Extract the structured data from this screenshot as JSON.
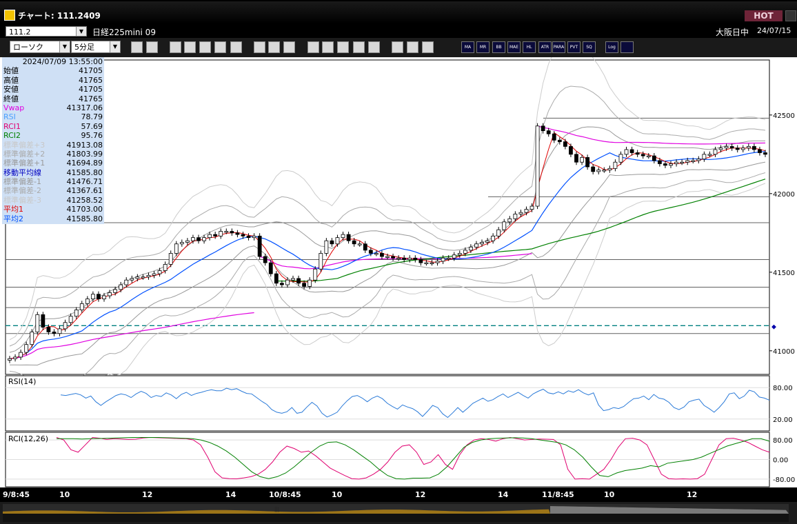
{
  "window": {
    "title": "チャート: 111.2409",
    "hot_label": "HOT"
  },
  "symbol_bar": {
    "code": "111.2",
    "name": "日経225mini 09",
    "market": "大阪日中",
    "date": "24/07/15"
  },
  "toolbar": {
    "chart_type": "ローソク",
    "timeframe": "5分足",
    "buttons_a": [
      "zoom-icon",
      "cursor-icon",
      "arrow-down-icon",
      "search-detail-icon",
      "bars-icon",
      "pin-icon",
      "lock-icon",
      "candle-icon",
      "candle-s-icon",
      "all-icon",
      "pen-icon",
      "trend-icon",
      "hand-icon",
      "copy-icon",
      "trash-icon",
      "target-icon",
      "brush-icon",
      "palette-icon"
    ],
    "buttons_b": [
      "MA",
      "MR",
      "BB",
      "MAE",
      "HL",
      "ATR",
      "PARA",
      "PVT",
      "SQ"
    ],
    "buttons_c": [
      "Log",
      "mark-icon"
    ]
  },
  "info_panel": {
    "datetime": "2024/07/09  13:55:00",
    "rows": [
      {
        "label": "始値",
        "value": "41705",
        "color": "#000000"
      },
      {
        "label": "高値",
        "value": "41765",
        "color": "#000000"
      },
      {
        "label": "安値",
        "value": "41705",
        "color": "#000000"
      },
      {
        "label": "終値",
        "value": "41765",
        "color": "#000000"
      },
      {
        "label": "Vwap",
        "value": "41317.06",
        "color": "#e000e0"
      },
      {
        "label": "RSI",
        "value": "78.79",
        "color": "#4aa0ff"
      },
      {
        "label": "RCI1",
        "value": "57.69",
        "color": "#e00070"
      },
      {
        "label": "RCI2",
        "value": "95.76",
        "color": "#008000"
      },
      {
        "label": "標準偏差+3",
        "value": "41913.08",
        "color": "#c8c8c8"
      },
      {
        "label": "標準偏差+2",
        "value": "41803.99",
        "color": "#aaaaaa"
      },
      {
        "label": "標準偏差+1",
        "value": "41694.89",
        "color": "#999999"
      },
      {
        "label": "移動平均線",
        "value": "41585.80",
        "color": "#0000c0"
      },
      {
        "label": "標準偏差-1",
        "value": "41476.71",
        "color": "#999999"
      },
      {
        "label": "標準偏差-2",
        "value": "41367.61",
        "color": "#aaaaaa"
      },
      {
        "label": "標準偏差-3",
        "value": "41258.52",
        "color": "#c8c8c8"
      },
      {
        "label": "平均1",
        "value": "41703.00",
        "color": "#e00000"
      },
      {
        "label": "平均2",
        "value": "41585.80",
        "color": "#0050ff"
      }
    ]
  },
  "chart_data": [
    {
      "type": "candlestick",
      "y_ticks": [
        41000,
        41500,
        42000,
        42500
      ],
      "ylim": [
        40850,
        42850
      ],
      "x_ticks": [
        "9/8:45",
        "10",
        "12",
        "14",
        "10/8:45",
        "10",
        "12",
        "14",
        "11/8:45",
        "10",
        "12"
      ],
      "reference_price": 41160,
      "horizontal_levels": [
        42480,
        41980,
        41815,
        41580,
        41405,
        41275,
        41110
      ],
      "close_series": [
        40950,
        40960,
        40990,
        41040,
        41120,
        41230,
        41150,
        41120,
        41110,
        41140,
        41180,
        41220,
        41260,
        41300,
        41330,
        41360,
        41330,
        41350,
        41370,
        41390,
        41420,
        41450,
        41460,
        41470,
        41470,
        41480,
        41490,
        41510,
        41550,
        41620,
        41680,
        41690,
        41700,
        41720,
        41700,
        41720,
        41740,
        41730,
        41760,
        41760,
        41750,
        41740,
        41730,
        41720,
        41730,
        41600,
        41560,
        41490,
        41430,
        41420,
        41450,
        41460,
        41430,
        41410,
        41450,
        41520,
        41620,
        41700,
        41680,
        41720,
        41740,
        41700,
        41680,
        41680,
        41640,
        41620,
        41620,
        41600,
        41600,
        41590,
        41590,
        41580,
        41590,
        41580,
        41560,
        41560,
        41560,
        41570,
        41590,
        41590,
        41610,
        41620,
        41640,
        41660,
        41680,
        41690,
        41700,
        41730,
        41770,
        41820,
        41840,
        41870,
        41880,
        41900,
        41920,
        42430,
        42400,
        42380,
        42340,
        42330,
        42300,
        42250,
        42200,
        42230,
        42170,
        42140,
        42150,
        42150,
        42160,
        42200,
        42250,
        42280,
        42260,
        42250,
        42240,
        42240,
        42210,
        42190,
        42180,
        42190,
        42200,
        42200,
        42210,
        42210,
        42220,
        42250,
        42250,
        42280,
        42290,
        42300,
        42290,
        42280,
        42290,
        42300,
        42280,
        42260,
        42250
      ]
    },
    {
      "type": "line",
      "title": "RSI(14)",
      "y_ticks": [
        80,
        20
      ],
      "ylim": [
        0,
        100
      ],
      "series": [
        {
          "name": "RSI",
          "values": [
            66,
            65,
            67,
            69,
            66,
            60,
            64,
            53,
            46,
            53,
            59,
            65,
            68,
            66,
            61,
            68,
            73,
            69,
            61,
            65,
            63,
            70,
            66,
            59,
            67,
            71,
            65,
            69,
            71,
            74,
            76,
            74,
            74,
            79,
            76,
            78,
            73,
            69,
            68,
            61,
            54,
            48,
            38,
            33,
            31,
            34,
            42,
            31,
            33,
            43,
            52,
            45,
            31,
            24,
            28,
            33,
            45,
            55,
            63,
            65,
            60,
            53,
            60,
            64,
            59,
            50,
            44,
            39,
            47,
            43,
            40,
            34,
            25,
            35,
            46,
            42,
            30,
            23,
            32,
            42,
            33,
            41,
            50,
            55,
            60,
            54,
            57,
            63,
            68,
            61,
            66,
            71,
            65,
            60,
            68,
            73,
            77,
            70,
            68,
            72,
            68,
            74,
            71,
            76,
            70,
            66,
            70,
            47,
            36,
            38,
            42,
            40,
            44,
            52,
            59,
            60,
            64,
            57,
            67,
            60,
            58,
            52,
            42,
            38,
            43,
            53,
            56,
            58,
            46,
            40,
            33,
            42,
            53,
            68,
            70,
            59,
            64,
            75,
            72,
            62,
            60,
            56
          ]
        }
      ]
    },
    {
      "type": "line",
      "title": "RCI(12,26)",
      "y_ticks": [
        80,
        0,
        -80
      ],
      "ylim": [
        -100,
        100
      ],
      "series": [
        {
          "name": "RCI1",
          "values": [
            90,
            80,
            40,
            30,
            60,
            90,
            87,
            82,
            85,
            84,
            82,
            83,
            88,
            90,
            89,
            88,
            87,
            86,
            85,
            80,
            60,
            10,
            -50,
            -75,
            -78,
            -79,
            -75,
            -70,
            -60,
            -40,
            -10,
            30,
            55,
            45,
            30,
            35,
            15,
            -10,
            -35,
            -50,
            -65,
            -78,
            -80,
            -75,
            -60,
            -40,
            -10,
            30,
            55,
            60,
            30,
            -20,
            -10,
            20,
            -20,
            -40,
            20,
            60,
            80,
            85,
            82,
            75,
            85,
            90,
            85,
            80,
            82,
            84,
            83,
            82,
            60,
            -40,
            -80,
            -78,
            -80,
            -60,
            -40,
            0,
            50,
            85,
            87,
            80,
            60,
            0,
            -60,
            -78,
            -80,
            -79,
            -80,
            -78,
            -60,
            0,
            60,
            85,
            87,
            80,
            70,
            55,
            40,
            30
          ]
        },
        {
          "name": "RCI2",
          "values": [
            85,
            85,
            85,
            84,
            85,
            86,
            87,
            88,
            89,
            90,
            90,
            90,
            90,
            89,
            88,
            87,
            85,
            80,
            70,
            55,
            35,
            10,
            -20,
            -50,
            -70,
            -78,
            -70,
            -55,
            -30,
            0,
            30,
            55,
            70,
            72,
            60,
            40,
            15,
            -10,
            -40,
            -65,
            -78,
            -80,
            -76,
            -76,
            -75,
            -60,
            -30,
            10,
            50,
            70,
            80,
            85,
            87,
            88,
            89,
            88,
            85,
            80,
            75,
            70,
            60,
            40,
            10,
            -30,
            -65,
            -70,
            -55,
            -45,
            -40,
            -35,
            -25,
            -30,
            -15,
            -10,
            -5,
            0,
            10,
            25,
            40,
            55,
            65,
            75,
            85,
            85,
            75
          ]
        }
      ]
    }
  ]
}
